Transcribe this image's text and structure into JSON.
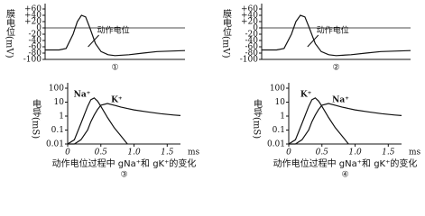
{
  "chart_data": [
    {
      "type": "line",
      "y_label": "膜电位(mV)",
      "annotation": "动作电位",
      "panel_label": "①",
      "xlim": [
        0,
        10
      ],
      "ylim": [
        -100,
        60
      ],
      "yticks": [
        {
          "value": 60,
          "label": "+60"
        },
        {
          "value": 40,
          "label": "+40"
        },
        {
          "value": 20,
          "label": "+20"
        },
        0,
        -20,
        -40,
        -60,
        -80,
        -100
      ],
      "hlines": [
        0
      ],
      "x": [
        0,
        1,
        1.5,
        2,
        2.3,
        2.6,
        2.9,
        3.2,
        3.6,
        4,
        4.5,
        5,
        6,
        7,
        8,
        10
      ],
      "series": [
        {
          "values": [
            -70,
            -70,
            -65,
            -20,
            20,
            40,
            35,
            0,
            -50,
            -75,
            -85,
            -88,
            -85,
            -80,
            -75,
            -72
          ],
          "color": "#111"
        }
      ]
    },
    {
      "type": "line",
      "y_label": "膜电位(mV)",
      "annotation": "动作电位",
      "panel_label": "②",
      "xlim": [
        0,
        10
      ],
      "ylim": [
        -100,
        60
      ],
      "yticks": [
        {
          "value": 60,
          "label": "+60"
        },
        {
          "value": 40,
          "label": "+40"
        },
        {
          "value": 20,
          "label": "+20"
        },
        0,
        -20,
        -40,
        -60,
        -80,
        -100
      ],
      "hlines": [
        0
      ],
      "x": [
        0,
        1,
        1.5,
        2,
        2.3,
        2.6,
        2.9,
        3.2,
        3.6,
        4,
        4.5,
        5,
        6,
        7,
        8,
        10
      ],
      "series": [
        {
          "values": [
            -70,
            -70,
            -65,
            -20,
            20,
            40,
            35,
            0,
            -50,
            -75,
            -85,
            -88,
            -85,
            -80,
            -75,
            -72
          ],
          "color": "#111"
        }
      ]
    },
    {
      "type": "line",
      "y_label": "电导(mS)",
      "caption": "动作电位过程中 gNa⁺和 gK⁺的变化",
      "panel_label": "③",
      "log_y": true,
      "xlim": [
        0,
        1.7
      ],
      "ylim": [
        0.01,
        100
      ],
      "x_unit": "ms",
      "yticks": [
        100,
        10,
        1,
        0.1,
        0.01
      ],
      "xticks": [
        0,
        0.5,
        {
          "value": 1,
          "label": "1.0"
        },
        1.5
      ],
      "x": [
        0,
        0.1,
        0.2,
        0.3,
        0.35,
        0.4,
        0.45,
        0.5,
        0.6,
        0.7,
        0.8,
        0.9,
        1.0,
        1.2,
        1.4,
        1.6,
        1.7
      ],
      "series": [
        {
          "name": "Na⁺",
          "color": "#111",
          "values": [
            0.01,
            0.02,
            0.3,
            5,
            15,
            20,
            12,
            5,
            0.8,
            0.15,
            0.04,
            0.01,
            null,
            null,
            null,
            null,
            null
          ]
        },
        {
          "name": "K⁺",
          "color": "#111",
          "values": [
            0.01,
            0.01,
            0.02,
            0.1,
            0.4,
            1.2,
            3,
            6,
            8,
            6,
            4.5,
            3.5,
            2.8,
            2,
            1.5,
            1.2,
            1.1
          ]
        }
      ]
    },
    {
      "type": "line",
      "y_label": "电导(mS)",
      "caption": "动作电位过程中 gNa⁺和 gK⁺的变化",
      "panel_label": "④",
      "log_y": true,
      "xlim": [
        0,
        1.7
      ],
      "ylim": [
        0.01,
        100
      ],
      "x_unit": "ms",
      "yticks": [
        100,
        10,
        1,
        0.1,
        0.01
      ],
      "xticks": [
        0,
        0.5,
        {
          "value": 1,
          "label": "1.0"
        },
        1.5
      ],
      "x": [
        0,
        0.1,
        0.2,
        0.3,
        0.35,
        0.4,
        0.45,
        0.5,
        0.6,
        0.7,
        0.8,
        0.9,
        1.0,
        1.2,
        1.4,
        1.6,
        1.7
      ],
      "series": [
        {
          "name": "K⁺",
          "color": "#111",
          "values": [
            0.01,
            0.02,
            0.3,
            5,
            15,
            20,
            12,
            5,
            0.8,
            0.15,
            0.04,
            0.01,
            null,
            null,
            null,
            null,
            null
          ]
        },
        {
          "name": "Na⁺",
          "color": "#111",
          "values": [
            0.01,
            0.01,
            0.02,
            0.1,
            0.4,
            1.2,
            3,
            6,
            8,
            6,
            4.5,
            3.5,
            2.8,
            2,
            1.5,
            1.2,
            1.1
          ]
        }
      ]
    }
  ]
}
